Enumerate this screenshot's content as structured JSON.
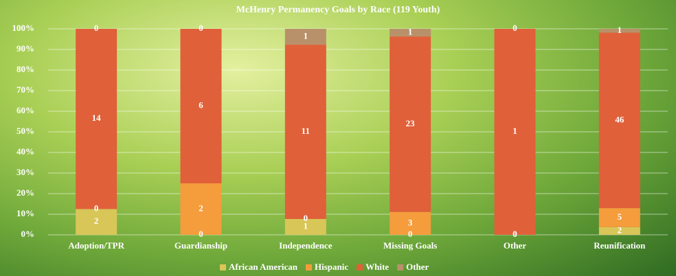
{
  "chart_data": {
    "type": "bar",
    "stacked": "percent",
    "title": "McHenry Permanency Goals by Race (119 Youth)",
    "categories": [
      "Adoption/TPR",
      "Guardianship",
      "Independence",
      "Missing Goals",
      "Other",
      "Reunification"
    ],
    "series": [
      {
        "name": "African American",
        "color": "#d8c658",
        "values": [
          2,
          0,
          1,
          0,
          0,
          2
        ]
      },
      {
        "name": "Hispanic",
        "color": "#f59c3c",
        "values": [
          0,
          2,
          0,
          3,
          0,
          5
        ]
      },
      {
        "name": "White",
        "color": "#e0603a",
        "values": [
          14,
          6,
          11,
          23,
          1,
          46
        ]
      },
      {
        "name": "Other",
        "color": "#b8916a",
        "values": [
          0,
          0,
          1,
          1,
          0,
          1
        ]
      }
    ],
    "ylim": [
      0,
      100
    ],
    "yticks": [
      {
        "value": 0,
        "label": "0%"
      },
      {
        "value": 10,
        "label": "10%"
      },
      {
        "value": 20,
        "label": "20%"
      },
      {
        "value": 30,
        "label": "30%"
      },
      {
        "value": 40,
        "label": "40%"
      },
      {
        "value": 50,
        "label": "50%"
      },
      {
        "value": 60,
        "label": "60%"
      },
      {
        "value": 70,
        "label": "70%"
      },
      {
        "value": 80,
        "label": "80%"
      },
      {
        "value": 90,
        "label": "90%"
      },
      {
        "value": 100,
        "label": "100%"
      }
    ],
    "grid": true,
    "legend": "bottom"
  }
}
